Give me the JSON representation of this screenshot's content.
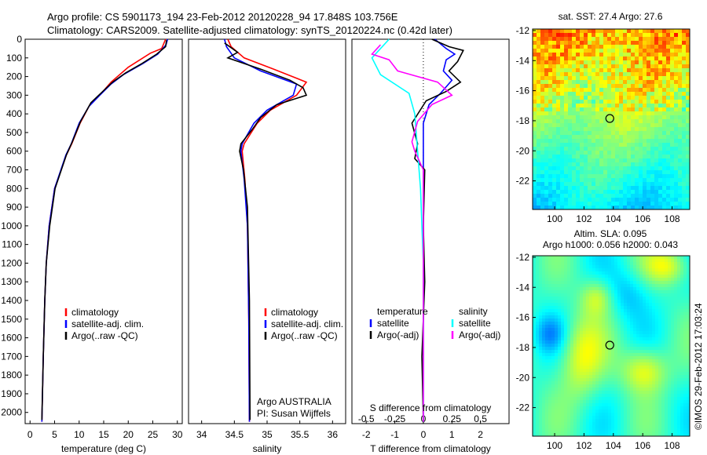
{
  "header": {
    "line1": "Argo profile: CS 5901173_194 23-Feb-2012 20120228_94 17.848S 103.756E",
    "line2": "Climatology: CARS2009. Satellite-adjusted climatology: synTS_20120224.nc (0.42d later)"
  },
  "colors": {
    "climatology": "#ff0000",
    "satellite": "#0000ff",
    "argo": "#000000",
    "s_satellite": "#00ffff",
    "s_argo": "#ff00ff"
  },
  "chart_data": [
    {
      "id": "temperature",
      "type": "line",
      "xlabel": "temperature (deg C)",
      "ylabel": "",
      "xlim": [
        -1,
        31
      ],
      "ylim": [
        2060,
        0
      ],
      "xticks": [
        "0",
        "5",
        "10",
        "15",
        "20",
        "25",
        "30"
      ],
      "yticks": [
        "0",
        "100",
        "200",
        "300",
        "400",
        "500",
        "600",
        "700",
        "800",
        "900",
        "1000",
        "1100",
        "1200",
        "1300",
        "1400",
        "1500",
        "1600",
        "1700",
        "1800",
        "1900",
        "2000"
      ],
      "legend": [
        "climatology",
        "satellite-adj. clim.",
        "Argo(..raw -QC)"
      ],
      "series": [
        {
          "name": "climatology",
          "color_key": "climatology",
          "points": [
            [
              27.6,
              0
            ],
            [
              26.8,
              50
            ],
            [
              24.5,
              75
            ],
            [
              20,
              150
            ],
            [
              16.5,
              230
            ],
            [
              14.5,
              290
            ],
            [
              12.2,
              350
            ],
            [
              10.2,
              450
            ],
            [
              8.5,
              560
            ],
            [
              7.4,
              620
            ],
            [
              5,
              800
            ],
            [
              3.9,
              1000
            ],
            [
              3.3,
              1200
            ],
            [
              3,
              1400
            ],
            [
              2.7,
              1700
            ],
            [
              2.4,
              2050
            ]
          ]
        },
        {
          "name": "satellite-adj. clim.",
          "color_key": "satellite",
          "points": [
            [
              28,
              0
            ],
            [
              27.7,
              30
            ],
            [
              26,
              80
            ],
            [
              23,
              130
            ],
            [
              19,
              190
            ],
            [
              16.5,
              240
            ],
            [
              14.2,
              300
            ],
            [
              12,
              360
            ],
            [
              10,
              450
            ],
            [
              8.4,
              560
            ],
            [
              7.3,
              620
            ],
            [
              5,
              800
            ],
            [
              3.9,
              1000
            ],
            [
              3.3,
              1200
            ],
            [
              3,
              1400
            ],
            [
              2.7,
              1700
            ],
            [
              2.4,
              2050
            ]
          ]
        },
        {
          "name": "Argo(..raw -QC)",
          "color_key": "argo",
          "points": [
            [
              27.8,
              5
            ],
            [
              27.6,
              40
            ],
            [
              25.8,
              80
            ],
            [
              22.8,
              130
            ],
            [
              19.5,
              180
            ],
            [
              16.8,
              230
            ],
            [
              14.8,
              280
            ],
            [
              12.4,
              340
            ],
            [
              10.3,
              440
            ],
            [
              8.6,
              550
            ],
            [
              7.4,
              620
            ],
            [
              5.1,
              800
            ],
            [
              4,
              1000
            ],
            [
              3.3,
              1200
            ],
            [
              3,
              1400
            ],
            [
              2.7,
              1700
            ],
            [
              2.4,
              2040
            ]
          ]
        }
      ]
    },
    {
      "id": "salinity",
      "type": "line",
      "xlabel": "salinity",
      "xlim": [
        33.8,
        36.2
      ],
      "ylim": [
        2060,
        0
      ],
      "xticks": [
        "34",
        "34.5",
        "35",
        "35.5",
        "36"
      ],
      "legend": [
        "climatology",
        "satellite-adj. clim.",
        "Argo(..raw -QC)"
      ],
      "annotation": [
        "Argo AUSTRALIA",
        "PI: Susan Wijffels"
      ],
      "series": [
        {
          "name": "climatology",
          "color_key": "climatology",
          "points": [
            [
              34.4,
              0
            ],
            [
              34.45,
              40
            ],
            [
              34.65,
              100
            ],
            [
              35.1,
              160
            ],
            [
              35.6,
              230
            ],
            [
              35.45,
              300
            ],
            [
              35.05,
              380
            ],
            [
              34.85,
              450
            ],
            [
              34.65,
              560
            ],
            [
              34.62,
              600
            ],
            [
              34.66,
              750
            ],
            [
              34.7,
              1000
            ],
            [
              34.72,
              1500
            ],
            [
              34.73,
              2050
            ]
          ]
        },
        {
          "name": "satellite-adj. clim.",
          "color_key": "satellite",
          "points": [
            [
              34.35,
              0
            ],
            [
              34.38,
              40
            ],
            [
              34.5,
              100
            ],
            [
              34.9,
              170
            ],
            [
              35.45,
              240
            ],
            [
              35.4,
              300
            ],
            [
              35,
              380
            ],
            [
              34.8,
              450
            ],
            [
              34.62,
              560
            ],
            [
              34.6,
              600
            ],
            [
              34.65,
              750
            ],
            [
              34.7,
              1000
            ],
            [
              34.72,
              1500
            ],
            [
              34.73,
              2050
            ]
          ]
        },
        {
          "name": "Argo(..raw -QC)",
          "color_key": "argo",
          "points": [
            [
              34.35,
              20
            ],
            [
              34.55,
              70
            ],
            [
              34.4,
              100
            ],
            [
              34.9,
              160
            ],
            [
              35.35,
              220
            ],
            [
              35.55,
              260
            ],
            [
              35.6,
              300
            ],
            [
              35.15,
              350
            ],
            [
              34.9,
              420
            ],
            [
              34.78,
              480
            ],
            [
              34.6,
              560
            ],
            [
              34.58,
              600
            ],
            [
              34.64,
              700
            ],
            [
              34.7,
              900
            ],
            [
              34.73,
              1400
            ],
            [
              34.74,
              2040
            ]
          ]
        }
      ]
    },
    {
      "id": "difference",
      "type": "line",
      "xlabel": "T difference from climatology",
      "xlabel_top": "S difference from climatology",
      "xlim": [
        -2.5,
        3
      ],
      "ylim": [
        2060,
        0
      ],
      "xticks": [
        "-2",
        "-1",
        "0",
        "1",
        "2"
      ],
      "xticks_s": [
        "-0.5",
        "-0.25",
        "0",
        "0.25",
        "0.5"
      ],
      "legend_t_title": "temperature",
      "legend_s_title": "salinity",
      "legend": [
        "satellite",
        "Argo(-adj)",
        "satellite",
        "Argo(-adj)"
      ],
      "series": [
        {
          "name": "T satellite",
          "color_key": "satellite",
          "points": [
            [
              0.4,
              0
            ],
            [
              0.8,
              50
            ],
            [
              1.1,
              80
            ],
            [
              0.8,
              110
            ],
            [
              0.7,
              170
            ],
            [
              1,
              220
            ],
            [
              0.6,
              290
            ],
            [
              0.2,
              350
            ],
            [
              0,
              450
            ],
            [
              0,
              700
            ],
            [
              0,
              1000
            ],
            [
              0,
              2050
            ]
          ]
        },
        {
          "name": "T Argo(-adj)",
          "color_key": "argo",
          "points": [
            [
              0.3,
              0
            ],
            [
              0.9,
              40
            ],
            [
              1.4,
              60
            ],
            [
              1.2,
              120
            ],
            [
              0.9,
              170
            ],
            [
              1.3,
              230
            ],
            [
              0.8,
              280
            ],
            [
              0.1,
              330
            ],
            [
              -0.4,
              450
            ],
            [
              -0.2,
              560
            ],
            [
              -0.3,
              640
            ],
            [
              0.05,
              700
            ],
            [
              0,
              1000
            ],
            [
              0.05,
              1300
            ],
            [
              -0.05,
              1700
            ],
            [
              0,
              2050
            ]
          ]
        },
        {
          "name": "S satellite",
          "color_key": "s_satellite",
          "points": [
            [
              -1.2,
              0
            ],
            [
              -1.8,
              100
            ],
            [
              -1.5,
              190
            ],
            [
              -0.5,
              290
            ],
            [
              -0.3,
              400
            ],
            [
              -0.2,
              600
            ],
            [
              -0.1,
              800
            ],
            [
              0,
              1200
            ],
            [
              0,
              2050
            ]
          ]
        },
        {
          "name": "S Argo(-adj)",
          "color_key": "s_argo",
          "points": [
            [
              -1.5,
              30
            ],
            [
              -1.8,
              80
            ],
            [
              -1.2,
              110
            ],
            [
              -0.9,
              170
            ],
            [
              0.5,
              230
            ],
            [
              1,
              300
            ],
            [
              0.3,
              350
            ],
            [
              -0.2,
              440
            ],
            [
              -0.4,
              550
            ],
            [
              -0.3,
              600
            ],
            [
              0,
              700
            ],
            [
              0,
              2050
            ]
          ]
        }
      ]
    },
    {
      "id": "sst_map",
      "type": "heatmap",
      "title": "sat. SST: 27.4  Argo: 27.6",
      "xlim": [
        98.5,
        109.2
      ],
      "ylim": [
        -23.9,
        -11.9
      ],
      "xticks": [
        "100",
        "102",
        "104",
        "106",
        "108"
      ],
      "yticks": [
        "-12",
        "-14",
        "-16",
        "-18",
        "-20",
        "-22"
      ],
      "marker": [
        103.756,
        -17.848
      ]
    },
    {
      "id": "sla_map",
      "type": "heatmap",
      "title_lines": [
        "Altim. SLA: 0.095",
        "Argo h1000: 0.056  h2000: 0.043"
      ],
      "xlim": [
        98.5,
        109.2
      ],
      "ylim": [
        -23.9,
        -11.9
      ],
      "xticks": [
        "100",
        "102",
        "104",
        "106",
        "108"
      ],
      "yticks": [
        "-12",
        "-14",
        "-16",
        "-18",
        "-20",
        "-22"
      ],
      "marker": [
        103.756,
        -17.848
      ]
    }
  ],
  "credit": "©IMOS 29-Feb-2012 17:03:24"
}
